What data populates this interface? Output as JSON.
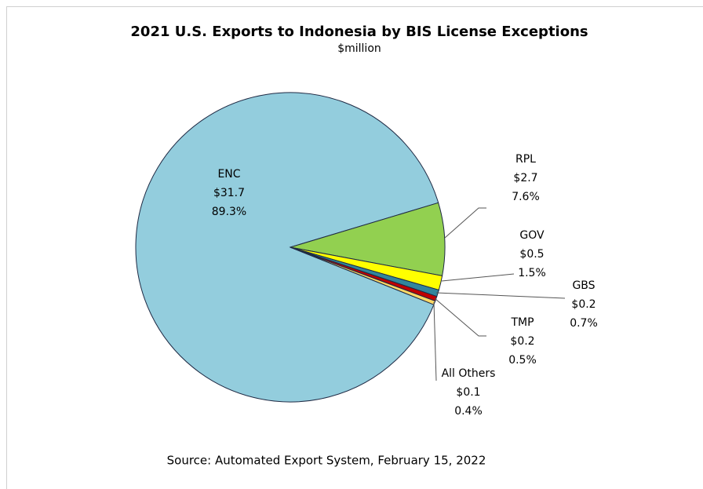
{
  "chart_data": {
    "type": "pie",
    "title": "2021 U.S. Exports to Indonesia  by BIS License Exceptions",
    "subtitle": "$million",
    "source": "Source: Automated Export System, February 15, 2022",
    "categories": [
      "ENC",
      "RPL",
      "GOV",
      "GBS",
      "TMP",
      "All Others"
    ],
    "values": [
      89.3,
      7.6,
      1.5,
      0.7,
      0.5,
      0.4
    ],
    "value_labels": [
      "89.3%",
      "7.6%",
      "1.5%",
      "0.7%",
      "0.5%",
      "0.4%"
    ],
    "amounts": [
      31.7,
      2.7,
      0.5,
      0.2,
      0.2,
      0.1
    ],
    "amount_labels": [
      "$31.7",
      "$2.7",
      "$0.5",
      "$0.2",
      "$0.2",
      "$0.1"
    ],
    "colors": [
      "#93cddd",
      "#92d050",
      "#ffff00",
      "#31859c",
      "#c00000",
      "#ffd966"
    ]
  }
}
